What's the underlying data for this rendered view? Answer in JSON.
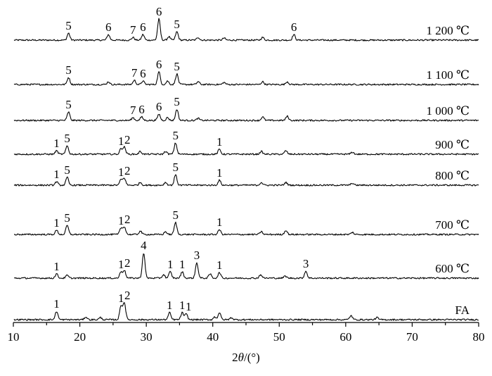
{
  "chart_data": {
    "type": "line",
    "xlabel": "2θ/(°)",
    "xlim": [
      10,
      80
    ],
    "x_ticks": [
      "10",
      "20",
      "30",
      "40",
      "50",
      "60",
      "70",
      "80"
    ],
    "y_axis_shown": false,
    "grid": false,
    "series": [
      {
        "name": "1 200 ℃",
        "peaks": [
          {
            "x": 18.3,
            "h": 10,
            "label": "5"
          },
          {
            "x": 24.3,
            "h": 8,
            "label": "6"
          },
          {
            "x": 28.0,
            "h": 4,
            "label": "7"
          },
          {
            "x": 29.5,
            "h": 8,
            "label": "6"
          },
          {
            "x": 31.9,
            "h": 30,
            "label": "6"
          },
          {
            "x": 34.6,
            "h": 12,
            "label": "5"
          },
          {
            "x": 52.2,
            "h": 8,
            "label": "6"
          },
          {
            "x": 33.4,
            "h": 5,
            "label": ""
          },
          {
            "x": 37.8,
            "h": 4,
            "label": ""
          },
          {
            "x": 41.7,
            "h": 3,
            "label": ""
          },
          {
            "x": 47.5,
            "h": 4,
            "label": ""
          }
        ]
      },
      {
        "name": "1 100 ℃",
        "peaks": [
          {
            "x": 18.3,
            "h": 10,
            "label": "5"
          },
          {
            "x": 28.2,
            "h": 6,
            "label": "7"
          },
          {
            "x": 29.5,
            "h": 5,
            "label": "6"
          },
          {
            "x": 31.9,
            "h": 18,
            "label": "6"
          },
          {
            "x": 34.6,
            "h": 15,
            "label": "5"
          },
          {
            "x": 24.3,
            "h": 4,
            "label": ""
          },
          {
            "x": 33.2,
            "h": 5,
            "label": ""
          },
          {
            "x": 37.8,
            "h": 4,
            "label": ""
          },
          {
            "x": 41.7,
            "h": 3,
            "label": ""
          },
          {
            "x": 47.5,
            "h": 4,
            "label": ""
          },
          {
            "x": 51.2,
            "h": 4,
            "label": ""
          }
        ]
      },
      {
        "name": "1 000 ℃",
        "peaks": [
          {
            "x": 18.3,
            "h": 12,
            "label": "5"
          },
          {
            "x": 28.0,
            "h": 4,
            "label": "7"
          },
          {
            "x": 29.3,
            "h": 5,
            "label": "6"
          },
          {
            "x": 31.9,
            "h": 9,
            "label": "6"
          },
          {
            "x": 34.6,
            "h": 16,
            "label": "5"
          },
          {
            "x": 47.5,
            "h": 5,
            "label": ""
          },
          {
            "x": 51.2,
            "h": 6,
            "label": ""
          },
          {
            "x": 33.2,
            "h": 4,
            "label": ""
          },
          {
            "x": 37.8,
            "h": 3,
            "label": ""
          }
        ]
      },
      {
        "name": "900 ℃",
        "peaks": [
          {
            "x": 16.5,
            "h": 5,
            "label": "1"
          },
          {
            "x": 18.1,
            "h": 12,
            "label": "5"
          },
          {
            "x": 26.2,
            "h": 8,
            "label": "1"
          },
          {
            "x": 26.7,
            "h": 10,
            "label": "2"
          },
          {
            "x": 34.4,
            "h": 16,
            "label": "5"
          },
          {
            "x": 41.0,
            "h": 7,
            "label": "1"
          },
          {
            "x": 29.1,
            "h": 4,
            "label": ""
          },
          {
            "x": 32.9,
            "h": 4,
            "label": ""
          },
          {
            "x": 47.3,
            "h": 4,
            "label": ""
          },
          {
            "x": 51.0,
            "h": 5,
            "label": ""
          },
          {
            "x": 61.0,
            "h": 3,
            "label": ""
          }
        ]
      },
      {
        "name": "800 ℃",
        "peaks": [
          {
            "x": 16.5,
            "h": 5,
            "label": "1"
          },
          {
            "x": 18.1,
            "h": 11,
            "label": "5"
          },
          {
            "x": 26.2,
            "h": 8,
            "label": "1"
          },
          {
            "x": 26.7,
            "h": 10,
            "label": "2"
          },
          {
            "x": 34.4,
            "h": 15,
            "label": "5"
          },
          {
            "x": 41.0,
            "h": 7,
            "label": "1"
          },
          {
            "x": 29.1,
            "h": 4,
            "label": ""
          },
          {
            "x": 32.9,
            "h": 4,
            "label": ""
          },
          {
            "x": 47.3,
            "h": 4,
            "label": ""
          },
          {
            "x": 51.0,
            "h": 4,
            "label": ""
          },
          {
            "x": 61.0,
            "h": 3,
            "label": ""
          }
        ]
      },
      {
        "name": "700 ℃",
        "peaks": [
          {
            "x": 16.5,
            "h": 6,
            "label": "1"
          },
          {
            "x": 18.1,
            "h": 13,
            "label": "5"
          },
          {
            "x": 26.2,
            "h": 9,
            "label": "1"
          },
          {
            "x": 26.7,
            "h": 11,
            "label": "2"
          },
          {
            "x": 34.4,
            "h": 17,
            "label": "5"
          },
          {
            "x": 41.0,
            "h": 7,
            "label": "1"
          },
          {
            "x": 29.1,
            "h": 5,
            "label": ""
          },
          {
            "x": 32.9,
            "h": 4,
            "label": ""
          },
          {
            "x": 47.3,
            "h": 4,
            "label": ""
          },
          {
            "x": 51.0,
            "h": 6,
            "label": ""
          },
          {
            "x": 61.0,
            "h": 3,
            "label": ""
          }
        ]
      },
      {
        "name": "600 ℃",
        "peaks": [
          {
            "x": 16.5,
            "h": 6,
            "label": "1"
          },
          {
            "x": 26.2,
            "h": 9,
            "label": "1"
          },
          {
            "x": 26.7,
            "h": 11,
            "label": "2"
          },
          {
            "x": 29.6,
            "h": 36,
            "label": "4"
          },
          {
            "x": 33.6,
            "h": 9,
            "label": "1"
          },
          {
            "x": 35.4,
            "h": 9,
            "label": "1"
          },
          {
            "x": 37.6,
            "h": 22,
            "label": "3"
          },
          {
            "x": 41.0,
            "h": 8,
            "label": "1"
          },
          {
            "x": 54.0,
            "h": 10,
            "label": "3"
          },
          {
            "x": 18.1,
            "h": 4,
            "label": ""
          },
          {
            "x": 32.6,
            "h": 5,
            "label": ""
          },
          {
            "x": 39.6,
            "h": 6,
            "label": ""
          },
          {
            "x": 47.2,
            "h": 5,
            "label": ""
          },
          {
            "x": 50.9,
            "h": 3,
            "label": ""
          }
        ]
      },
      {
        "name": "FA",
        "peaks": [
          {
            "x": 16.5,
            "h": 12,
            "label": "1"
          },
          {
            "x": 26.2,
            "h": 20,
            "label": "1"
          },
          {
            "x": 26.7,
            "h": 24,
            "label": "2"
          },
          {
            "x": 33.5,
            "h": 10,
            "label": "1"
          },
          {
            "x": 35.4,
            "h": 10,
            "label": "1"
          },
          {
            "x": 36.0,
            "h": 8,
            "label": "1"
          },
          {
            "x": 41.0,
            "h": 10,
            "label": ""
          },
          {
            "x": 40.3,
            "h": 4,
            "label": ""
          },
          {
            "x": 42.8,
            "h": 3,
            "label": ""
          },
          {
            "x": 60.8,
            "h": 6,
            "label": ""
          },
          {
            "x": 64.7,
            "h": 3,
            "label": ""
          },
          {
            "x": 20.9,
            "h": 4,
            "label": ""
          },
          {
            "x": 23.1,
            "h": 3,
            "label": ""
          }
        ]
      }
    ]
  }
}
